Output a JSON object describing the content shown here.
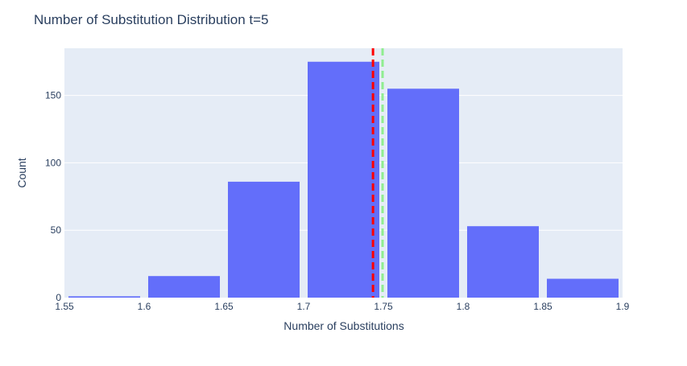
{
  "chart_data": {
    "type": "bar",
    "title": "Number of Substitution Distribution t=5",
    "xlabel": "Number of Substitutions",
    "ylabel": "Count",
    "bins": [
      {
        "start": 1.55,
        "end": 1.6,
        "count": 1
      },
      {
        "start": 1.6,
        "end": 1.65,
        "count": 16
      },
      {
        "start": 1.65,
        "end": 1.7,
        "count": 86
      },
      {
        "start": 1.7,
        "end": 1.75,
        "count": 175
      },
      {
        "start": 1.75,
        "end": 1.8,
        "count": 155
      },
      {
        "start": 1.8,
        "end": 1.85,
        "count": 53
      },
      {
        "start": 1.85,
        "end": 1.9,
        "count": 14
      }
    ],
    "xlim": [
      1.55,
      1.9
    ],
    "ylim": [
      0,
      185
    ],
    "x_ticks": [
      1.55,
      1.6,
      1.65,
      1.7,
      1.75,
      1.8,
      1.85,
      1.9
    ],
    "x_tick_labels": [
      "1.55",
      "1.6",
      "1.65",
      "1.7",
      "1.75",
      "1.8",
      "1.85",
      "1.9"
    ],
    "y_ticks": [
      0,
      50,
      100,
      150
    ],
    "y_tick_labels": [
      "0",
      "50",
      "100",
      "150"
    ],
    "vlines": [
      {
        "x": 1.7435,
        "color": "#ff0000",
        "style": "dash"
      },
      {
        "x": 1.7495,
        "color": "#90ee90",
        "style": "dash"
      }
    ],
    "grid": true,
    "legend": "none"
  },
  "colors": {
    "bar": "#636efa",
    "plot_bg": "#e5ecf6",
    "grid": "#ffffff",
    "text": "#2a3f5f"
  }
}
